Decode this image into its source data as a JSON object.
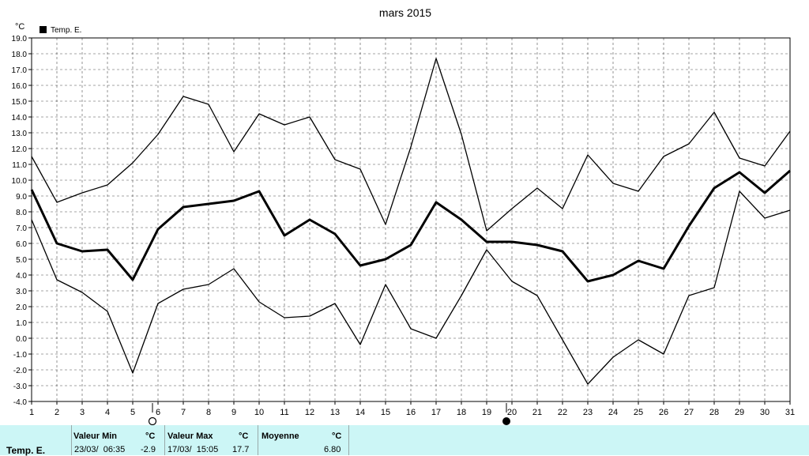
{
  "chart_data": {
    "type": "line",
    "title": "mars 2015",
    "ylabel": "°C",
    "x": [
      1,
      2,
      3,
      4,
      5,
      6,
      7,
      8,
      9,
      10,
      11,
      12,
      13,
      14,
      15,
      16,
      17,
      18,
      19,
      20,
      21,
      22,
      23,
      24,
      25,
      26,
      27,
      28,
      29,
      30,
      31
    ],
    "ylim": [
      -4.0,
      19.0
    ],
    "y_ticks": [
      "-4.0",
      "-3.0",
      "-2.0",
      "-1.0",
      "0.0",
      "1.0",
      "2.0",
      "3.0",
      "4.0",
      "5.0",
      "6.0",
      "7.0",
      "8.0",
      "9.0",
      "10.0",
      "11.0",
      "12.0",
      "13.0",
      "14.0",
      "15.0",
      "16.0",
      "17.0",
      "18.0",
      "19.0"
    ],
    "grid": true,
    "legend": {
      "position": "top-left",
      "label": "Temp. E."
    },
    "series": [
      {
        "name": "Temp. E.",
        "role": "mean",
        "values": [
          9.4,
          6.0,
          5.5,
          5.6,
          3.7,
          6.9,
          8.3,
          8.5,
          8.7,
          9.3,
          6.5,
          7.5,
          6.6,
          4.6,
          5.0,
          5.9,
          8.6,
          7.5,
          6.1,
          6.1,
          5.9,
          5.5,
          3.6,
          4.0,
          4.9,
          4.4,
          7.1,
          9.5,
          10.5,
          9.2,
          10.6
        ]
      },
      {
        "role": "max",
        "values": [
          11.5,
          8.6,
          9.2,
          9.7,
          11.1,
          12.9,
          15.3,
          14.8,
          11.8,
          14.2,
          13.5,
          14.0,
          11.3,
          10.7,
          7.2,
          12.1,
          17.7,
          12.9,
          6.8,
          8.2,
          9.5,
          8.2,
          11.6,
          9.8,
          9.3,
          11.5,
          12.3,
          14.3,
          11.4,
          10.9,
          13.1
        ]
      },
      {
        "role": "min",
        "values": [
          7.5,
          3.7,
          2.9,
          1.7,
          -2.2,
          2.2,
          3.1,
          3.4,
          4.4,
          2.3,
          1.3,
          1.4,
          2.2,
          -0.4,
          3.4,
          0.6,
          0.0,
          2.7,
          5.6,
          3.6,
          2.7,
          -0.1,
          -2.9,
          -1.2,
          -0.1,
          -1.0,
          2.7,
          3.2,
          9.3,
          7.6,
          8.1
        ]
      }
    ],
    "moon_markers": [
      {
        "day_label": "6",
        "icon": "last-quarter-moon-icon"
      },
      {
        "day_label": "20",
        "icon": "new-moon-icon"
      }
    ]
  },
  "footer": {
    "row_label": "Temp. E.",
    "min": {
      "label": "Valeur Min",
      "unit": "°C",
      "date": "23/03/  06:35",
      "value": "-2.9"
    },
    "max": {
      "label": "Valeur Max",
      "unit": "°C",
      "date": "17/03/  15:05",
      "value": "17.7"
    },
    "avg": {
      "label": "Moyenne",
      "unit": "°C",
      "value": "6.80"
    }
  },
  "colors": {
    "footer_bg": "#ccf6f6",
    "grid": "#000000",
    "line": "#000000"
  }
}
